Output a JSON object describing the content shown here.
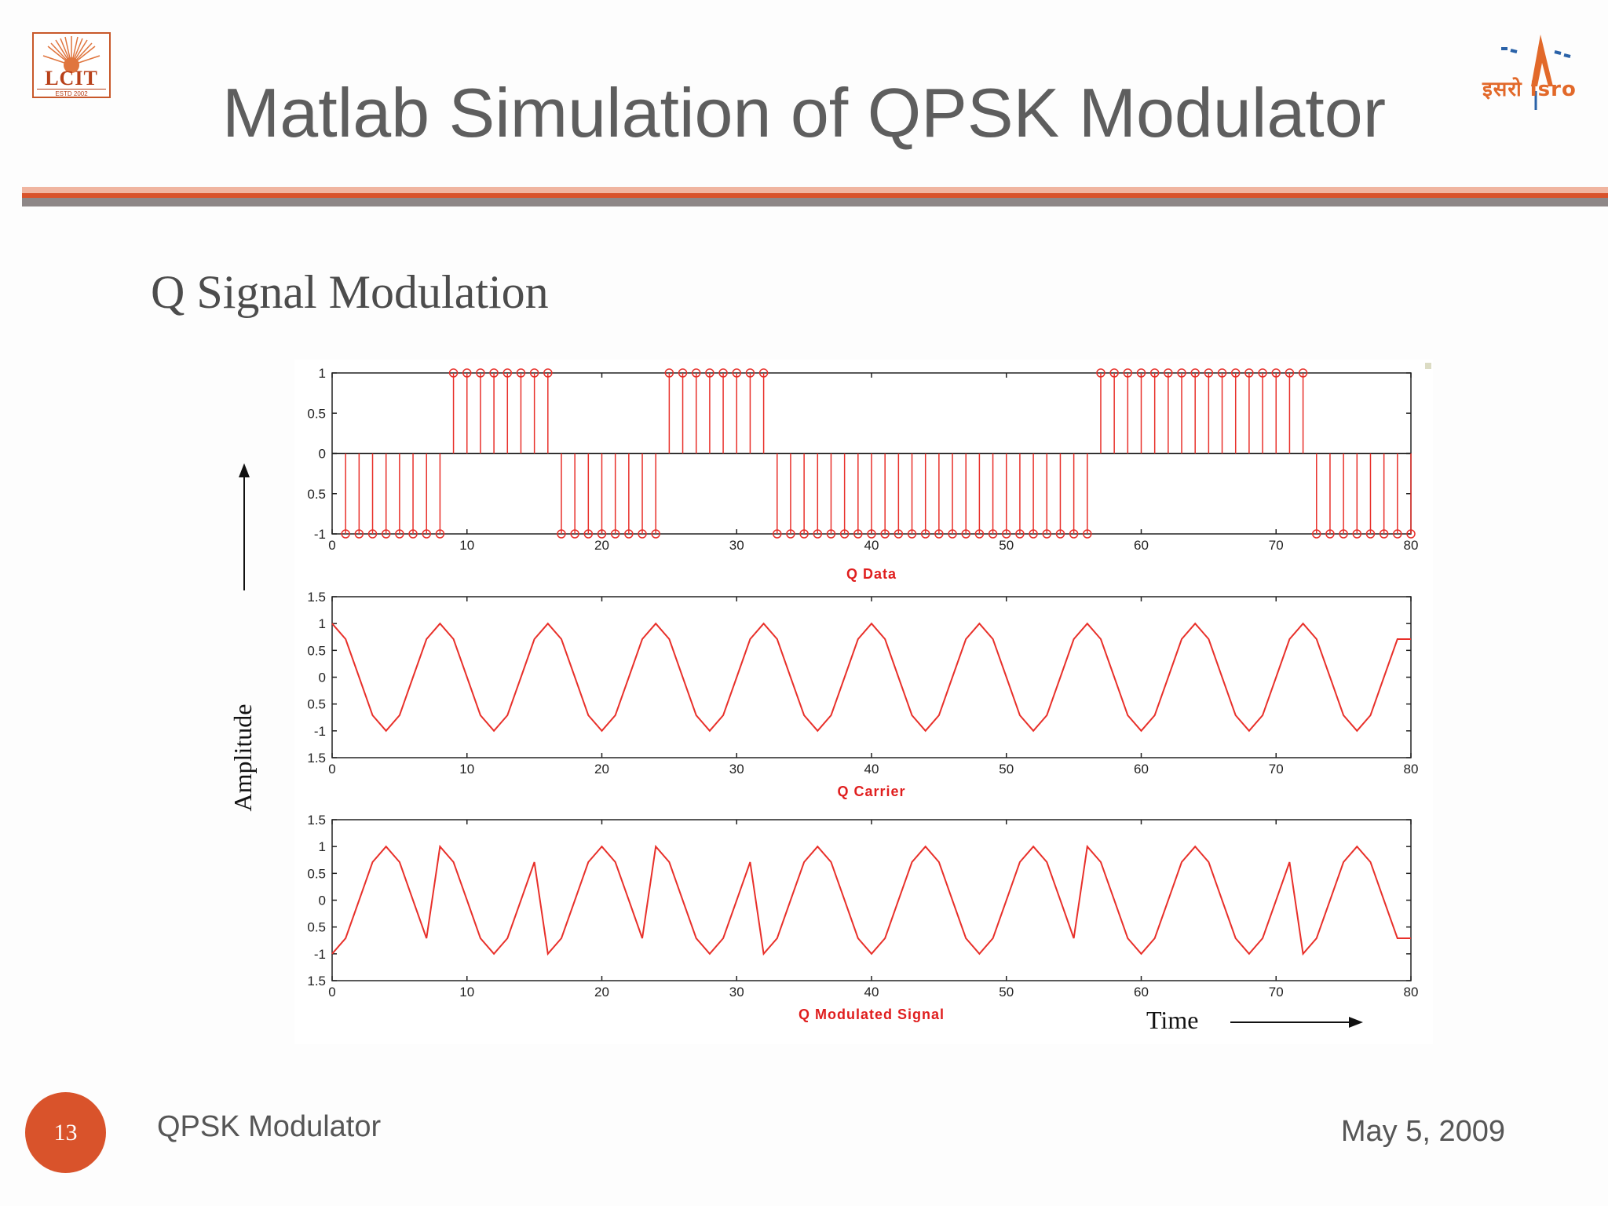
{
  "slide": {
    "title": "Matlab Simulation of QPSK Modulator",
    "subtitle": "Q Signal Modulation",
    "footer_text": "QPSK Modulator",
    "date": "May 5, 2009",
    "page_number": "13",
    "accent_color": "#d9532b"
  },
  "logos": {
    "left": {
      "text": "LCIT",
      "estd": "ESTD 2002"
    },
    "right": {
      "text": "इसरो isro"
    }
  },
  "annotations": {
    "amplitude": "Amplitude",
    "time": "Time"
  },
  "chart_data": [
    {
      "type": "stem",
      "title": "Q Data",
      "xlim": [
        0,
        80
      ],
      "ylim": [
        -1,
        1
      ],
      "xticks": [
        0,
        10,
        20,
        30,
        40,
        50,
        60,
        70,
        80
      ],
      "yticks": [
        "1",
        "0.5",
        "0",
        "0.5",
        "-1"
      ],
      "x": [
        1,
        2,
        3,
        4,
        5,
        6,
        7,
        8,
        9,
        10,
        11,
        12,
        13,
        14,
        15,
        16,
        17,
        18,
        19,
        20,
        21,
        22,
        23,
        24,
        25,
        26,
        27,
        28,
        29,
        30,
        31,
        32,
        33,
        34,
        35,
        36,
        37,
        38,
        39,
        40,
        41,
        42,
        43,
        44,
        45,
        46,
        47,
        48,
        49,
        50,
        51,
        52,
        53,
        54,
        55,
        56,
        57,
        58,
        59,
        60,
        61,
        62,
        63,
        64,
        65,
        66,
        67,
        68,
        69,
        70,
        71,
        72,
        73,
        74,
        75,
        76,
        77,
        78,
        79,
        80
      ],
      "y": [
        -1,
        -1,
        -1,
        -1,
        -1,
        -1,
        -1,
        -1,
        1,
        1,
        1,
        1,
        1,
        1,
        1,
        1,
        -1,
        -1,
        -1,
        -1,
        -1,
        -1,
        -1,
        -1,
        1,
        1,
        1,
        1,
        1,
        1,
        1,
        1,
        -1,
        -1,
        -1,
        -1,
        -1,
        -1,
        -1,
        -1,
        -1,
        -1,
        -1,
        -1,
        -1,
        -1,
        -1,
        -1,
        -1,
        -1,
        -1,
        -1,
        -1,
        -1,
        -1,
        -1,
        1,
        1,
        1,
        1,
        1,
        1,
        1,
        1,
        1,
        1,
        1,
        1,
        1,
        1,
        1,
        1,
        -1,
        -1,
        -1,
        -1,
        -1,
        -1,
        -1,
        -1
      ],
      "color": "#e8302a"
    },
    {
      "type": "line",
      "title": "Q  Carrier",
      "xlim": [
        0,
        80
      ],
      "ylim": [
        -1.5,
        1.5
      ],
      "xticks": [
        0,
        10,
        20,
        30,
        40,
        50,
        60,
        70,
        80
      ],
      "yticks": [
        "1.5",
        "1",
        "0.5",
        "0",
        "0.5",
        "-1",
        "1.5"
      ],
      "x": [
        0,
        1,
        2,
        3,
        4,
        5,
        6,
        7,
        8,
        9,
        10,
        11,
        12,
        13,
        14,
        15,
        16,
        17,
        18,
        19,
        20,
        21,
        22,
        23,
        24,
        25,
        26,
        27,
        28,
        29,
        30,
        31,
        32,
        33,
        34,
        35,
        36,
        37,
        38,
        39,
        40,
        41,
        42,
        43,
        44,
        45,
        46,
        47,
        48,
        49,
        50,
        51,
        52,
        53,
        54,
        55,
        56,
        57,
        58,
        59,
        60,
        61,
        62,
        63,
        64,
        65,
        66,
        67,
        68,
        69,
        70,
        71,
        72,
        73,
        74,
        75,
        76,
        77,
        78,
        79,
        80
      ],
      "y": [
        1,
        0.71,
        0,
        -0.71,
        -1,
        -0.71,
        0,
        0.71,
        1,
        0.71,
        0,
        -0.71,
        -1,
        -0.71,
        0,
        0.71,
        1,
        0.71,
        0,
        -0.71,
        -1,
        -0.71,
        0,
        0.71,
        1,
        0.71,
        0,
        -0.71,
        -1,
        -0.71,
        0,
        0.71,
        1,
        0.71,
        0,
        -0.71,
        -1,
        -0.71,
        0,
        0.71,
        1,
        0.71,
        0,
        -0.71,
        -1,
        -0.71,
        0,
        0.71,
        1,
        0.71,
        0,
        -0.71,
        -1,
        -0.71,
        0,
        0.71,
        1,
        0.71,
        0,
        -0.71,
        -1,
        -0.71,
        0,
        0.71,
        1,
        0.71,
        0,
        -0.71,
        -1,
        -0.71,
        0,
        0.71,
        1,
        0.71,
        0,
        -0.71,
        -1,
        -0.71,
        0,
        0.71,
        0.71
      ],
      "color": "#e8302a"
    },
    {
      "type": "line",
      "title": "Q Modulated Signal",
      "xlim": [
        0,
        80
      ],
      "ylim": [
        -1.5,
        1.5
      ],
      "xticks": [
        0,
        10,
        20,
        30,
        40,
        50,
        60,
        70,
        80
      ],
      "yticks": [
        "1.5",
        "1",
        "0.5",
        "0",
        "0.5",
        "-1",
        "1.5"
      ],
      "x": [
        0,
        1,
        2,
        3,
        4,
        5,
        6,
        7,
        8,
        9,
        10,
        11,
        12,
        13,
        14,
        15,
        16,
        17,
        18,
        19,
        20,
        21,
        22,
        23,
        24,
        25,
        26,
        27,
        28,
        29,
        30,
        31,
        32,
        33,
        34,
        35,
        36,
        37,
        38,
        39,
        40,
        41,
        42,
        43,
        44,
        45,
        46,
        47,
        48,
        49,
        50,
        51,
        52,
        53,
        54,
        55,
        56,
        57,
        58,
        59,
        60,
        61,
        62,
        63,
        64,
        65,
        66,
        67,
        68,
        69,
        70,
        71,
        72,
        73,
        74,
        75,
        76,
        77,
        78,
        79,
        80
      ],
      "y": [
        -1,
        -0.71,
        0,
        0.71,
        1,
        0.71,
        0,
        -0.71,
        1,
        0.71,
        0,
        -0.71,
        -1,
        -0.71,
        0,
        0.71,
        -1,
        -0.71,
        0,
        0.71,
        1,
        0.71,
        0,
        -0.71,
        1,
        0.71,
        0,
        -0.71,
        -1,
        -0.71,
        0,
        0.71,
        -1,
        -0.71,
        0,
        0.71,
        1,
        0.71,
        0,
        -0.71,
        -1,
        -0.71,
        0,
        0.71,
        1,
        0.71,
        0,
        -0.71,
        -1,
        -0.71,
        0,
        0.71,
        1,
        0.71,
        0,
        -0.71,
        1,
        0.71,
        0,
        -0.71,
        -1,
        -0.71,
        0,
        0.71,
        1,
        0.71,
        0,
        -0.71,
        -1,
        -0.71,
        0,
        0.71,
        -1,
        -0.71,
        0,
        0.71,
        1,
        0.71,
        0,
        -0.71,
        -0.71
      ],
      "color": "#e8302a"
    }
  ]
}
